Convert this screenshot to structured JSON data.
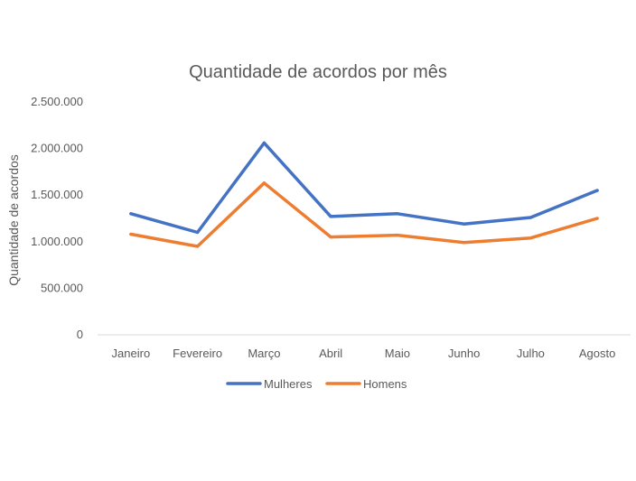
{
  "chart_data": {
    "type": "line",
    "title": "Quantidade de acordos por mês",
    "xlabel": "",
    "ylabel": "Quantidade de acordos",
    "categories": [
      "Janeiro",
      "Fevereiro",
      "Março",
      "Abril",
      "Maio",
      "Junho",
      "Julho",
      "Agosto"
    ],
    "ylim": [
      0,
      2500000
    ],
    "yticks": [
      0,
      500000,
      1000000,
      1500000,
      2000000,
      2500000
    ],
    "ytick_labels": [
      "0",
      "500.000",
      "1.000.000",
      "1.500.000",
      "2.000.000",
      "2.500.000"
    ],
    "grid": false,
    "legend_position": "bottom",
    "series": [
      {
        "name": "Mulheres",
        "color": "#4472C4",
        "values": [
          1300000,
          1100000,
          2060000,
          1270000,
          1300000,
          1190000,
          1260000,
          1550000
        ]
      },
      {
        "name": "Homens",
        "color": "#ED7D31",
        "values": [
          1080000,
          950000,
          1630000,
          1050000,
          1070000,
          990000,
          1040000,
          1250000
        ]
      }
    ]
  }
}
